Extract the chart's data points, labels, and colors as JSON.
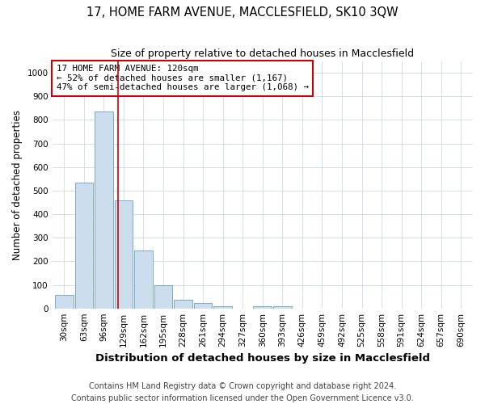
{
  "title": "17, HOME FARM AVENUE, MACCLESFIELD, SK10 3QW",
  "subtitle": "Size of property relative to detached houses in Macclesfield",
  "xlabel": "Distribution of detached houses by size in Macclesfield",
  "ylabel": "Number of detached properties",
  "footer_line1": "Contains HM Land Registry data © Crown copyright and database right 2024.",
  "footer_line2": "Contains public sector information licensed under the Open Government Licence v3.0.",
  "categories": [
    "30sqm",
    "63sqm",
    "96sqm",
    "129sqm",
    "162sqm",
    "195sqm",
    "228sqm",
    "261sqm",
    "294sqm",
    "327sqm",
    "360sqm",
    "393sqm",
    "426sqm",
    "459sqm",
    "492sqm",
    "525sqm",
    "558sqm",
    "591sqm",
    "624sqm",
    "657sqm",
    "690sqm"
  ],
  "values": [
    57,
    535,
    835,
    460,
    245,
    97,
    37,
    22,
    10,
    0,
    8,
    8,
    0,
    0,
    0,
    0,
    0,
    0,
    0,
    0,
    0
  ],
  "bar_color": "#ccdded",
  "bar_edge_color": "#7aabcc",
  "grid_color": "#d0d8e0",
  "vline_color": "#cc0000",
  "vline_x": 3,
  "annotation_text": "17 HOME FARM AVENUE: 120sqm\n← 52% of detached houses are smaller (1,167)\n47% of semi-detached houses are larger (1,068) →",
  "annotation_box_color": "#ffffff",
  "annotation_box_edge": "#cc0000",
  "ylim": [
    0,
    1050
  ],
  "yticks": [
    0,
    100,
    200,
    300,
    400,
    500,
    600,
    700,
    800,
    900,
    1000
  ],
  "title_fontsize": 10.5,
  "subtitle_fontsize": 9,
  "xlabel_fontsize": 9.5,
  "ylabel_fontsize": 8.5,
  "tick_fontsize": 7.5,
  "footer_fontsize": 7,
  "background_color": "#ffffff"
}
